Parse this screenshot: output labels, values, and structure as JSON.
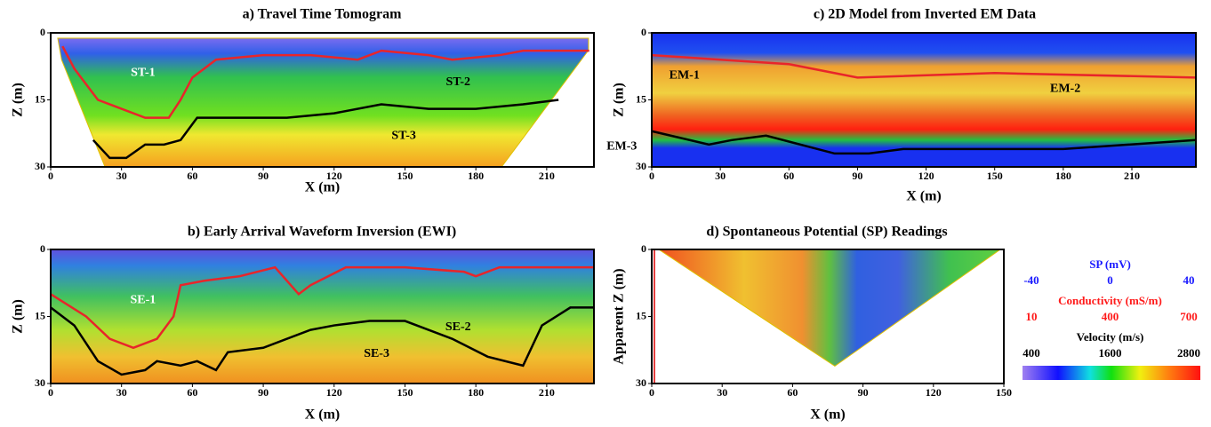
{
  "chart_data": [
    {
      "type": "section",
      "title": "a) Travel Time Tomogram",
      "xlabel": "X (m)",
      "ylabel": "Z (m)",
      "xlim": [
        0,
        230
      ],
      "ylim": [
        30,
        0
      ],
      "xticks": [
        0,
        30,
        60,
        90,
        120,
        150,
        180,
        210
      ],
      "yticks": [
        0,
        15,
        30
      ],
      "annotations": [
        "ST-1",
        "ST-2",
        "ST-3"
      ],
      "series": [
        {
          "color": "#e8252a",
          "x": [
            5,
            10,
            20,
            30,
            40,
            50,
            55,
            60,
            70,
            90,
            110,
            130,
            140,
            160,
            170,
            190,
            200,
            228
          ],
          "values": [
            3,
            8,
            15,
            17,
            19,
            19,
            15,
            10,
            6,
            5,
            5,
            6,
            4,
            5,
            6,
            5,
            4,
            4
          ]
        },
        {
          "color": "#000000",
          "x": [
            18,
            25,
            32,
            40,
            48,
            55,
            62,
            80,
            100,
            120,
            140,
            160,
            180,
            200,
            215
          ],
          "values": [
            24,
            28,
            28,
            25,
            25,
            24,
            19,
            19,
            19,
            18,
            16,
            17,
            17,
            16,
            15
          ]
        }
      ]
    },
    {
      "type": "section",
      "title": "b) Early Arrival Waveform Inversion (EWI)",
      "xlabel": "X (m)",
      "ylabel": "Z (m)",
      "xlim": [
        0,
        230
      ],
      "ylim": [
        30,
        0
      ],
      "xticks": [
        0,
        30,
        60,
        90,
        120,
        150,
        180,
        210
      ],
      "yticks": [
        0,
        15,
        30
      ],
      "annotations": [
        "SE-1",
        "SE-2",
        "SE-3"
      ],
      "series": [
        {
          "color": "#e8252a",
          "x": [
            0,
            15,
            25,
            35,
            45,
            52,
            55,
            65,
            80,
            95,
            105,
            110,
            125,
            150,
            175,
            180,
            190,
            230
          ],
          "values": [
            10,
            15,
            20,
            22,
            20,
            15,
            8,
            7,
            6,
            4,
            10,
            8,
            4,
            4,
            5,
            6,
            4,
            4
          ]
        },
        {
          "color": "#000000",
          "x": [
            0,
            10,
            20,
            30,
            40,
            45,
            55,
            62,
            70,
            75,
            90,
            110,
            120,
            135,
            150,
            170,
            185,
            200,
            208,
            220,
            230
          ],
          "values": [
            13,
            17,
            25,
            28,
            27,
            25,
            26,
            25,
            27,
            23,
            22,
            18,
            17,
            16,
            16,
            20,
            24,
            26,
            17,
            13,
            13
          ]
        }
      ]
    },
    {
      "type": "section",
      "title": "c) 2D Model from Inverted EM Data",
      "xlabel": "X (m)",
      "ylabel": "Z (m)",
      "xlim": [
        0,
        238
      ],
      "ylim": [
        30,
        0
      ],
      "xticks": [
        0,
        30,
        60,
        90,
        120,
        150,
        180,
        210
      ],
      "yticks": [
        0,
        15,
        30
      ],
      "annotations": [
        "EM-1",
        "EM-2",
        "EM-3"
      ],
      "series": [
        {
          "color": "#e8252a",
          "x": [
            0,
            30,
            60,
            90,
            150,
            238
          ],
          "values": [
            5,
            6,
            7,
            10,
            9,
            10
          ]
        },
        {
          "color": "#000000",
          "x": [
            0,
            25,
            35,
            50,
            80,
            95,
            110,
            150,
            180,
            238
          ],
          "values": [
            22,
            25,
            24,
            23,
            27,
            27,
            26,
            26,
            26,
            24
          ]
        }
      ]
    },
    {
      "type": "section",
      "title": "d) Spontaneous Potential (SP) Readings",
      "xlabel": "X (m)",
      "ylabel": "Apparent Z (m)",
      "xlim": [
        0,
        150
      ],
      "ylim": [
        30,
        0
      ],
      "xticks": [
        0,
        30,
        60,
        90,
        120,
        150
      ],
      "yticks": [
        0,
        15,
        30
      ],
      "annotations": [],
      "series": []
    }
  ],
  "colorbar": {
    "scales": [
      {
        "title": "SP (mV)",
        "color": "#1a1aff",
        "ticks": [
          -40,
          0,
          40
        ]
      },
      {
        "title": "Conductivity (mS/m)",
        "color": "#ff1a1a",
        "ticks": [
          10,
          400,
          700
        ]
      },
      {
        "title": "Velocity (m/s)",
        "color": "#000000",
        "ticks": [
          400,
          1600,
          2800
        ]
      }
    ]
  }
}
